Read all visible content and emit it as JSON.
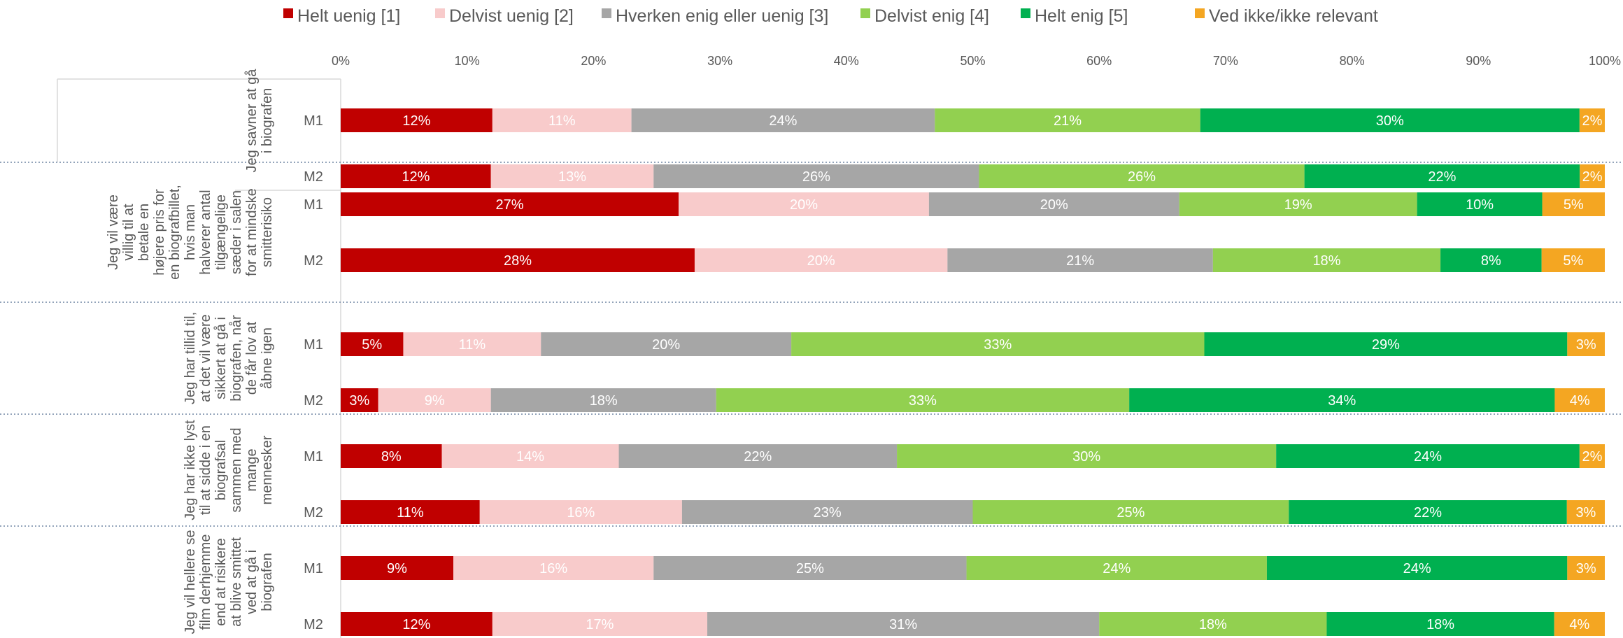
{
  "chart_data": {
    "type": "bar",
    "orientation": "horizontal",
    "stacked": "percent",
    "legend_position": "top",
    "x_ticks": [
      "0%",
      "10%",
      "20%",
      "30%",
      "40%",
      "50%",
      "60%",
      "70%",
      "80%",
      "90%",
      "100%"
    ],
    "xlim": [
      0,
      100
    ],
    "series": [
      {
        "name": "Helt uenig [1]",
        "color": "#c00000",
        "label_color": "#ffffff"
      },
      {
        "name": "Delvist uenig [2]",
        "color": "#f8cbcb",
        "label_color": "#ffffff"
      },
      {
        "name": "Hverken enig eller uenig [3]",
        "color": "#a6a6a6",
        "label_color": "#ffffff"
      },
      {
        "name": "Delvist enig [4]",
        "color": "#92d050",
        "label_color": "#ffffff"
      },
      {
        "name": "Helt enig [5]",
        "color": "#00b050",
        "label_color": "#ffffff"
      },
      {
        "name": "Ved ikke/ikke relevant",
        "color": "#f4a622",
        "label_color": "#ffffff"
      }
    ],
    "groups": [
      {
        "question_lines": [
          "Jeg savner at gå",
          "i biografen"
        ],
        "bars": [
          {
            "label": "M1",
            "values": [
              12,
              11,
              24,
              21,
              30,
              2
            ],
            "labels": [
              "12%",
              "11%",
              "24%",
              "21%",
              "30%",
              "2%"
            ]
          },
          {
            "label": "M2",
            "values": [
              12,
              13,
              26,
              26,
              22,
              2
            ],
            "labels": [
              "12%",
              "13%",
              "26%",
              "26%",
              "22%",
              "2%"
            ]
          }
        ]
      },
      {
        "question_lines": [
          "Jeg vil være",
          "villig til at",
          "betale en",
          "højere pris for",
          "en biografbillet,",
          "hvis man",
          "halverer antal",
          "tilgængelige",
          "sæder i salen",
          "for at mindske",
          "smitterisiko"
        ],
        "bars": [
          {
            "label": "M1",
            "values": [
              27,
              20,
              20,
              19,
              10,
              5
            ],
            "labels": [
              "27%",
              "20%",
              "20%",
              "19%",
              "10%",
              "5%"
            ]
          },
          {
            "label": "M2",
            "values": [
              28,
              20,
              21,
              18,
              8,
              5
            ],
            "labels": [
              "28%",
              "20%",
              "21%",
              "18%",
              "8%",
              "5%"
            ]
          }
        ]
      },
      {
        "question_lines": [
          "Jeg har tillid til,",
          "at det vil være",
          "sikkert at gå i",
          "biografen, når",
          "de får lov at",
          "åbne igen"
        ],
        "bars": [
          {
            "label": "M1",
            "values": [
              5,
              11,
              20,
              33,
              29,
              3
            ],
            "labels": [
              "5%",
              "11%",
              "20%",
              "33%",
              "29%",
              "3%"
            ]
          },
          {
            "label": "M2",
            "values": [
              3,
              9,
              18,
              33,
              34,
              4
            ],
            "labels": [
              "3%",
              "9%",
              "18%",
              "33%",
              "34%",
              "4%"
            ]
          }
        ]
      },
      {
        "question_lines": [
          "Jeg har ikke lyst",
          "til at sidde i en",
          "biografsal",
          "sammen med",
          "mange",
          "mennesker"
        ],
        "bars": [
          {
            "label": "M1",
            "values": [
              8,
              14,
              22,
              30,
              24,
              2
            ],
            "labels": [
              "8%",
              "14%",
              "22%",
              "30%",
              "24%",
              "2%"
            ]
          },
          {
            "label": "M2",
            "values": [
              11,
              16,
              23,
              25,
              22,
              3
            ],
            "labels": [
              "11%",
              "16%",
              "23%",
              "25%",
              "22%",
              "3%"
            ]
          }
        ]
      },
      {
        "question_lines": [
          "Jeg vil hellere se",
          "film derhjemme",
          "end at risikere",
          "at blive smittet",
          "ved at gå i",
          "biografen"
        ],
        "bars": [
          {
            "label": "M1",
            "values": [
              9,
              16,
              25,
              24,
              24,
              3
            ],
            "labels": [
              "9%",
              "16%",
              "25%",
              "24%",
              "24%",
              "3%"
            ]
          },
          {
            "label": "M2",
            "values": [
              12,
              17,
              31,
              18,
              18,
              4
            ],
            "labels": [
              "12%",
              "17%",
              "31%",
              "18%",
              "18%",
              "4%"
            ]
          }
        ]
      }
    ]
  }
}
